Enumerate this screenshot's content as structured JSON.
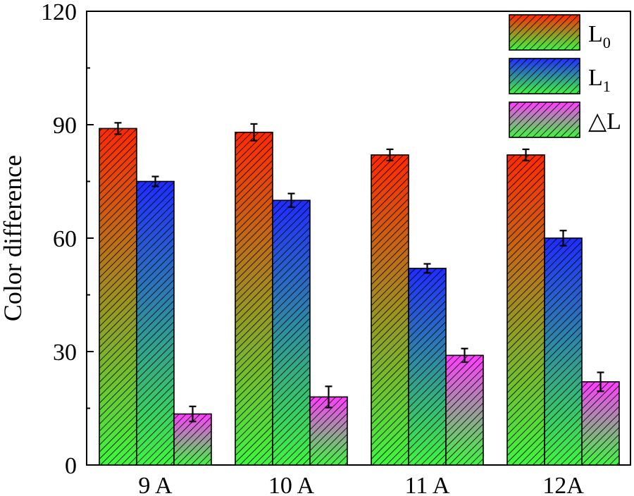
{
  "chart_data": {
    "type": "bar",
    "title": "",
    "xlabel": "",
    "ylabel": "Color difference",
    "ylim": [
      0,
      120
    ],
    "yticks": [
      0,
      30,
      60,
      90,
      120
    ],
    "categories": [
      "9 A",
      "10 A",
      "11 A",
      "12A"
    ],
    "series": [
      {
        "name": "L0",
        "label_main": "L",
        "label_sub": "0",
        "values": [
          89,
          88,
          82,
          82
        ],
        "errors": [
          1.5,
          2.2,
          1.5,
          1.5
        ],
        "gradient_top": "#ff2a00",
        "gradient_bottom": "#3ff53f"
      },
      {
        "name": "L1",
        "label_main": "L",
        "label_sub": "1",
        "values": [
          75,
          70,
          52,
          60
        ],
        "errors": [
          1.3,
          1.8,
          1.2,
          2.0
        ],
        "gradient_top": "#1f2cff",
        "gradient_bottom": "#3ff53f"
      },
      {
        "name": "ΔL",
        "label_main": "△L",
        "label_sub": "",
        "values": [
          13.5,
          18,
          29,
          22
        ],
        "errors": [
          2.0,
          2.8,
          1.8,
          2.5
        ],
        "gradient_top": "#ff3cff",
        "gradient_bottom": "#3ff53f"
      }
    ],
    "legend_position": "top-right",
    "grid": false
  }
}
